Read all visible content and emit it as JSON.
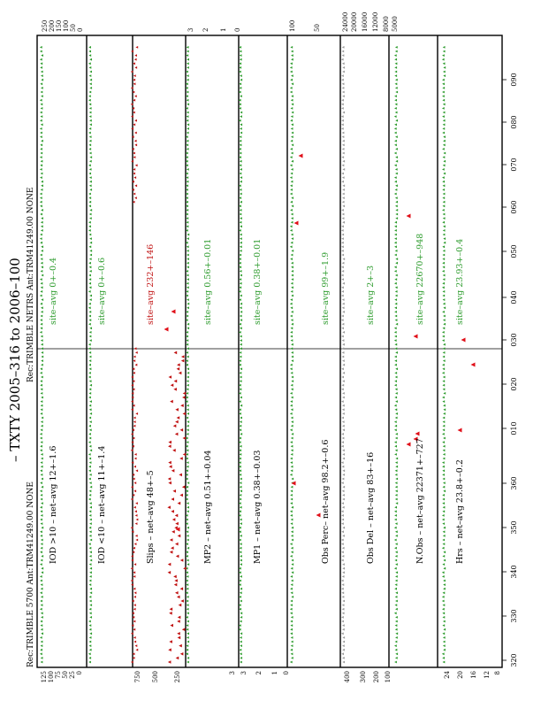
{
  "header": {
    "title": "– TXTY   2005–316 to 2006–100",
    "receiver_left": "Rec:TRIMBLE 5700 Ant:TRM41249.00 NONE",
    "receiver_right": "Rec:TRIMBLE NETRS Ant:TRM41249.00 NONE"
  },
  "colors": {
    "site": "#2a9a2a",
    "net_slips": "#c01010",
    "gray": "#9a9a9a",
    "outlier": "#e0101a"
  },
  "chart_data": {
    "type": "scatter",
    "x_ticks_bottom": [
      "320",
      "330",
      "340",
      "350",
      "360",
      "010",
      "020",
      "030",
      "040",
      "050",
      "060",
      "070",
      "080",
      "090"
    ],
    "x_ticks_top": [],
    "panels": [
      {
        "id": "iod_gt10",
        "net_label": "IOD >10 – net–avg 12+–1.6",
        "site_label": "site–avg 0+–0.4",
        "y_ticks": [
          "125",
          "100",
          "75",
          "50",
          "25",
          "0"
        ],
        "y_ticks_right": [
          "250",
          "200",
          "150",
          "100",
          "50",
          "0"
        ],
        "series_color": "site"
      },
      {
        "id": "iod_lt10",
        "net_label": "IOD <10 – net–avg 11+–1.4",
        "site_label": "site–avg 0+–0.6",
        "y_ticks": [],
        "y_ticks_right": [],
        "series_color": "site"
      },
      {
        "id": "slips",
        "net_label": "Slips – net–avg 48+–5",
        "site_label": "site–avg 232+–146",
        "y_ticks": [
          "750",
          "500",
          "250"
        ],
        "y_ticks_right": [],
        "series_color": "net_slips"
      },
      {
        "id": "mp2",
        "net_label": "MP2 – net–avg 0.51+–0.04",
        "site_label": "site–avg 0.56+–0.01",
        "y_ticks": [
          "3"
        ],
        "y_ticks_right": [
          "3",
          "2",
          "1",
          "0"
        ],
        "series_color": "site"
      },
      {
        "id": "mp1",
        "net_label": "MP1 – net–avg 0.38+–0.03",
        "site_label": "site–avg 0.38+–0.01",
        "y_ticks": [
          "3",
          "2",
          "1",
          "0"
        ],
        "y_ticks_right": [
          "100",
          "50"
        ],
        "series_color": "site"
      },
      {
        "id": "obs_perc",
        "net_label": "Obs Perc– net–avg 98.2+–0.6",
        "site_label": "site–avg 99+–1.9",
        "y_ticks": [],
        "y_ticks_right": [],
        "series_color": "site"
      },
      {
        "id": "obs_del",
        "net_label": "Obs Del – net–avg 83+–16",
        "site_label": "site–avg 2+–3",
        "y_ticks": [
          "400",
          "300",
          "200",
          "100"
        ],
        "y_ticks_right": [
          "24000",
          "20000",
          "16000",
          "12000",
          "8000",
          "5000"
        ],
        "series_color": "gray"
      },
      {
        "id": "n_obs",
        "net_label": "N.Obs – net–avg 22371+–727",
        "site_label": "site–avg 22670+–948",
        "y_ticks": [],
        "y_ticks_right": [],
        "series_color": "site"
      },
      {
        "id": "hrs",
        "net_label": "Hrs – net–avg 23.8+–0.2",
        "site_label": "site–avg 23.93+–0.4",
        "y_ticks": [
          "24",
          "20",
          "16",
          "12",
          "8"
        ],
        "y_ticks_right": [],
        "series_color": "site"
      }
    ]
  }
}
